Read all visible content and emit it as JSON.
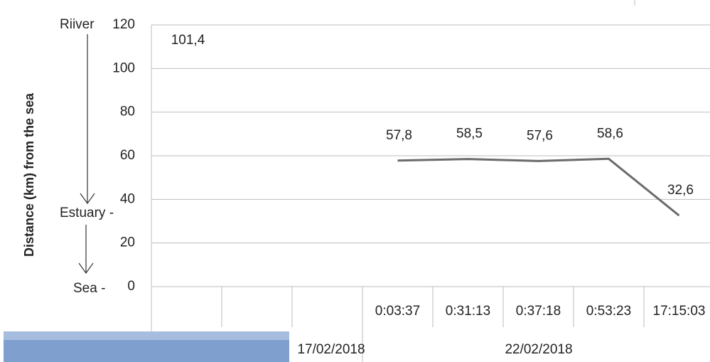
{
  "chart_data": {
    "type": "line",
    "y_axis_title": "Distance (km) from the sea",
    "annotations": [
      "Riiver",
      "Estuary -",
      "Sea -"
    ],
    "categories": [
      null,
      null,
      null,
      "0:03:37",
      "0:31:13",
      "0:37:18",
      "0:53:23",
      "17:15:03"
    ],
    "category_groups": [
      "17/02/2018",
      "22/02/2018"
    ],
    "series": [
      {
        "name": "Distance",
        "color": "#6b6b6b",
        "values": [
          101.4,
          null,
          null,
          57.8,
          58.5,
          57.6,
          58.6,
          32.6
        ],
        "value_labels": [
          "101,4",
          null,
          null,
          "57,8",
          "58,5",
          "57,6",
          "58,6",
          "32,6"
        ]
      }
    ],
    "ylim": [
      0,
      120
    ],
    "yticks": [
      0,
      20,
      40,
      60,
      80,
      100,
      120
    ],
    "grid": true
  }
}
